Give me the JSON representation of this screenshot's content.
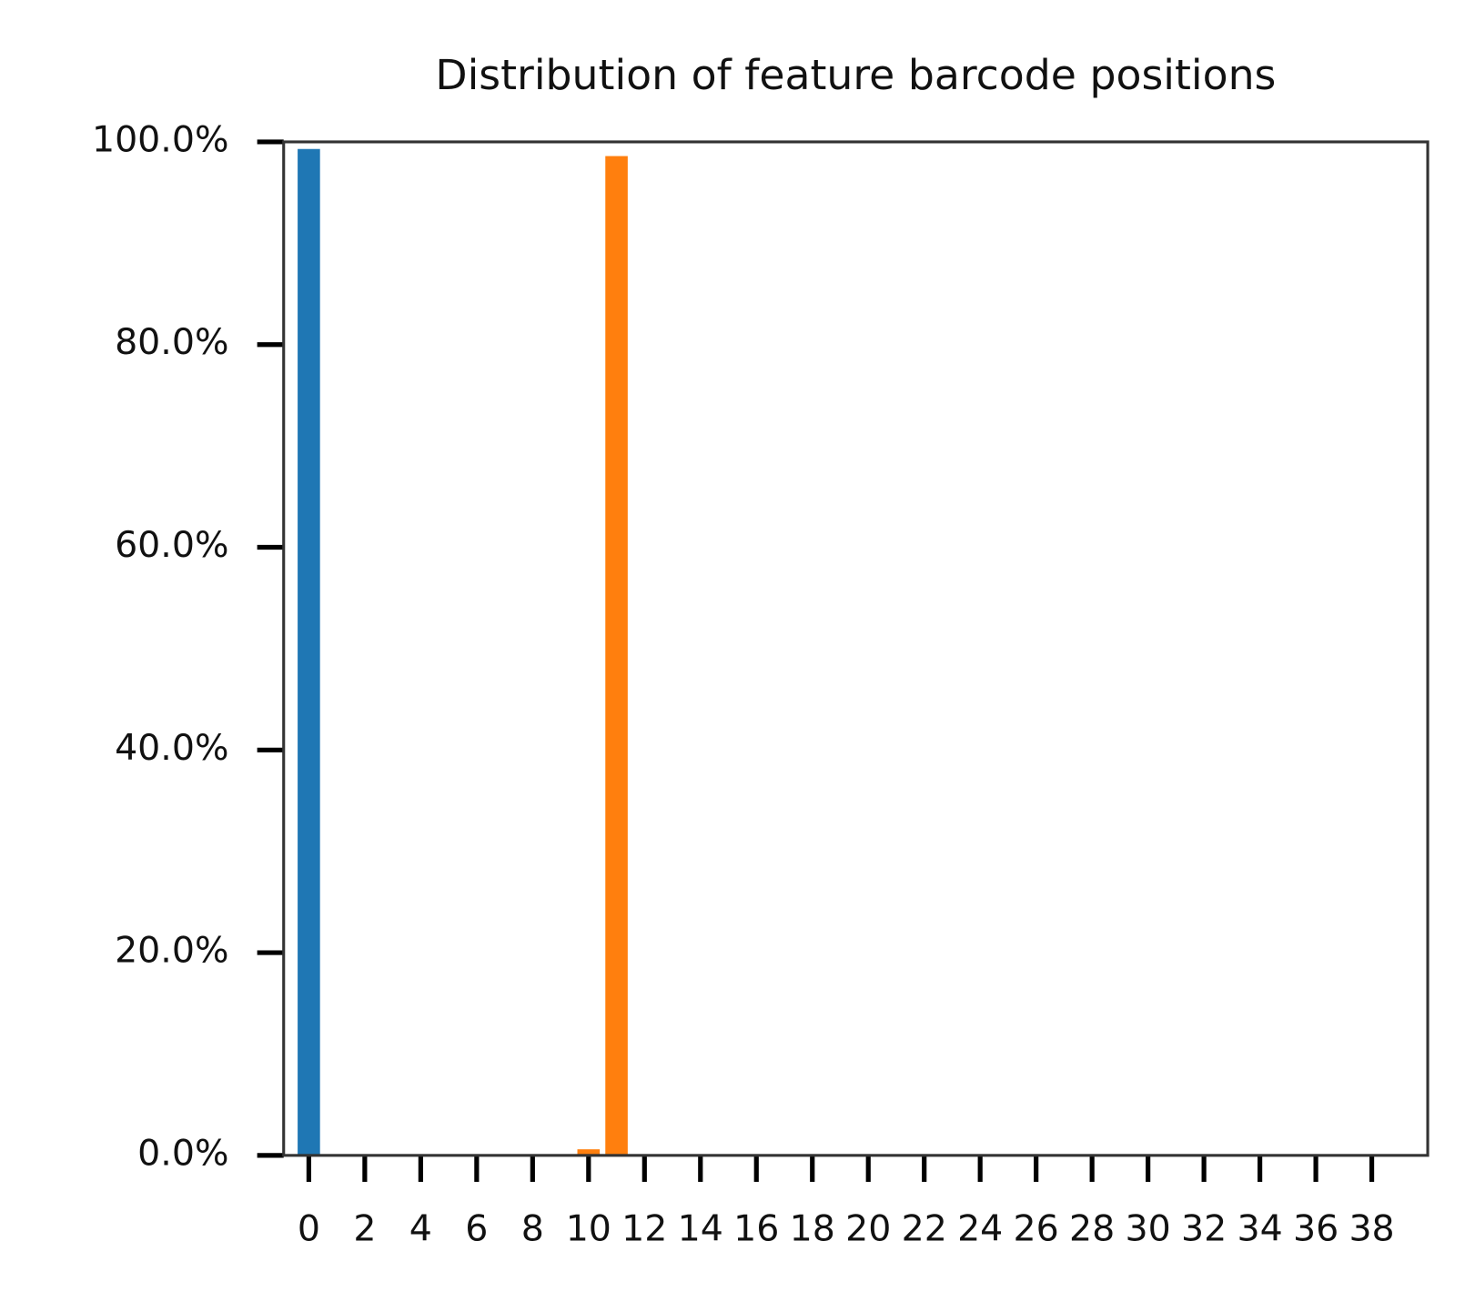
{
  "chart_data": {
    "type": "bar",
    "title": "Distribution of feature barcode positions",
    "series": [
      {
        "color": "#1f77b4",
        "x": [
          0
        ],
        "values": [
          99.3
        ]
      },
      {
        "color": "#ff7f0e",
        "x": [
          10,
          11
        ],
        "values": [
          0.6,
          98.6
        ]
      }
    ],
    "xlim": [
      -0.9,
      40.0
    ],
    "xticks": [
      0,
      2,
      4,
      6,
      8,
      10,
      12,
      14,
      16,
      18,
      20,
      22,
      24,
      26,
      28,
      30,
      32,
      34,
      36,
      38
    ],
    "ylim": [
      0,
      100
    ],
    "yticks": [
      {
        "value": 0,
        "label": "0.0%"
      },
      {
        "value": 20,
        "label": "20.0%"
      },
      {
        "value": 40,
        "label": "40.0%"
      },
      {
        "value": 60,
        "label": "60.0%"
      },
      {
        "value": 80,
        "label": "80.0%"
      },
      {
        "value": 100,
        "label": "100.0%"
      }
    ]
  }
}
